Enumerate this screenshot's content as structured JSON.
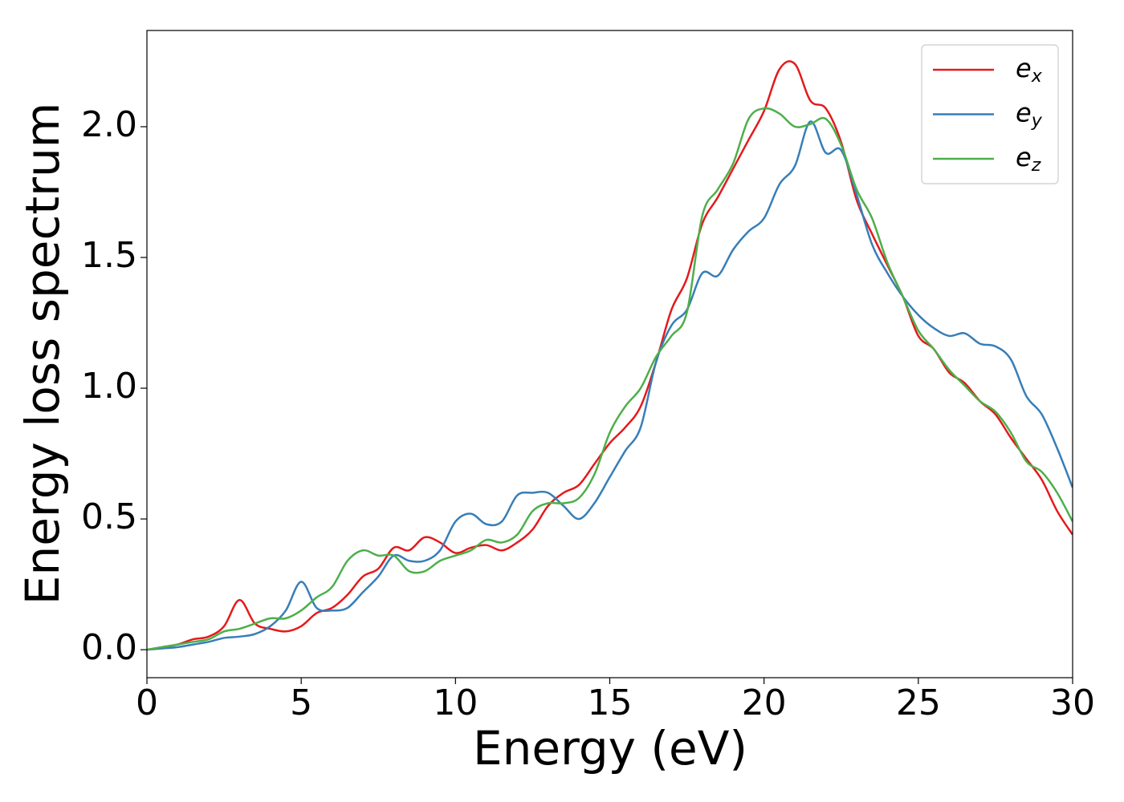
{
  "chart_data": {
    "type": "line",
    "xlabel": "Energy (eV)",
    "ylabel": "Energy loss spectrum",
    "x": [
      0,
      0.5,
      1,
      1.5,
      2,
      2.5,
      3,
      3.5,
      4,
      4.5,
      5,
      5.5,
      6,
      6.5,
      7,
      7.5,
      8,
      8.5,
      9,
      9.5,
      10,
      10.5,
      11,
      11.5,
      12,
      12.5,
      13,
      13.5,
      14,
      14.5,
      15,
      15.5,
      16,
      16.5,
      17,
      17.5,
      18,
      18.5,
      19,
      19.5,
      20,
      20.5,
      21,
      21.5,
      22,
      22.5,
      23,
      23.5,
      24,
      24.5,
      25,
      25.5,
      26,
      26.5,
      27,
      27.5,
      28,
      28.5,
      29,
      29.5,
      30
    ],
    "series": [
      {
        "name": "e_x",
        "color": "#e41a1c",
        "values": [
          0,
          0.01,
          0.02,
          0.04,
          0.05,
          0.09,
          0.19,
          0.1,
          0.08,
          0.07,
          0.09,
          0.14,
          0.16,
          0.21,
          0.28,
          0.31,
          0.39,
          0.38,
          0.43,
          0.41,
          0.37,
          0.39,
          0.4,
          0.38,
          0.41,
          0.46,
          0.55,
          0.6,
          0.63,
          0.71,
          0.79,
          0.85,
          0.93,
          1.1,
          1.3,
          1.42,
          1.63,
          1.73,
          1.84,
          1.95,
          2.06,
          2.22,
          2.24,
          2.1,
          2.07,
          1.94,
          1.72,
          1.59,
          1.47,
          1.35,
          1.2,
          1.15,
          1.06,
          1.02,
          0.95,
          0.9,
          0.81,
          0.73,
          0.65,
          0.53,
          0.44
        ]
      },
      {
        "name": "e_y",
        "color": "#377eb8",
        "values": [
          0,
          0.005,
          0.01,
          0.02,
          0.03,
          0.045,
          0.05,
          0.06,
          0.09,
          0.15,
          0.26,
          0.16,
          0.15,
          0.16,
          0.22,
          0.28,
          0.36,
          0.34,
          0.34,
          0.38,
          0.49,
          0.52,
          0.48,
          0.49,
          0.59,
          0.6,
          0.6,
          0.55,
          0.5,
          0.56,
          0.66,
          0.76,
          0.85,
          1.1,
          1.24,
          1.3,
          1.44,
          1.43,
          1.53,
          1.6,
          1.65,
          1.78,
          1.85,
          2.02,
          1.9,
          1.91,
          1.74,
          1.55,
          1.44,
          1.35,
          1.28,
          1.23,
          1.2,
          1.21,
          1.17,
          1.16,
          1.11,
          0.97,
          0.9,
          0.77,
          0.62
        ]
      },
      {
        "name": "e_z",
        "color": "#4daf4a",
        "values": [
          0,
          0.01,
          0.02,
          0.03,
          0.04,
          0.07,
          0.08,
          0.1,
          0.12,
          0.12,
          0.15,
          0.2,
          0.24,
          0.34,
          0.38,
          0.36,
          0.36,
          0.3,
          0.3,
          0.34,
          0.36,
          0.38,
          0.42,
          0.41,
          0.44,
          0.53,
          0.56,
          0.56,
          0.58,
          0.67,
          0.83,
          0.93,
          1.0,
          1.12,
          1.2,
          1.29,
          1.66,
          1.76,
          1.86,
          2.03,
          2.07,
          2.05,
          2.0,
          2.01,
          2.03,
          1.93,
          1.76,
          1.65,
          1.48,
          1.35,
          1.22,
          1.15,
          1.07,
          1.01,
          0.95,
          0.91,
          0.83,
          0.72,
          0.68,
          0.6,
          0.49
        ]
      }
    ],
    "xlim": [
      0,
      30
    ],
    "xticks": [
      0,
      5,
      10,
      15,
      20,
      25,
      30
    ],
    "ylim": [
      -0.107,
      2.368
    ],
    "yticks": [
      {
        "value": 0,
        "label": "0.0"
      },
      0.5,
      {
        "value": 1,
        "label": "1.0"
      },
      1.5,
      {
        "value": 2,
        "label": "2.0"
      }
    ],
    "grid": false,
    "legend": "upper right"
  }
}
